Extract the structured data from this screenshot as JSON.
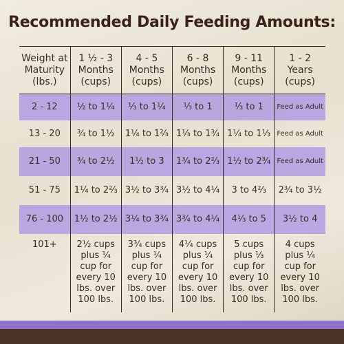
{
  "header": {
    "title": "Recommended Daily Feeding Amounts:"
  },
  "table": {
    "columns": [
      "Weight at Maturity (lbs.)",
      "1 ½ - 3 Months (cups)",
      "4 - 5 Months (cups)",
      "6 - 8 Months (cups)",
      "9 - 11 Months (cups)",
      "1 - 2 Years (cups)"
    ],
    "rows": [
      [
        "2 - 12",
        "½ to 1¼",
        "⅓ to 1¼",
        "⅓ to 1",
        "⅓ to 1",
        "Feed as Adult"
      ],
      [
        "13 - 20",
        "¾ to 1½",
        "1¼ to 1⅔",
        "1⅓ to 1¾",
        "1¼ to 1⅓",
        "Feed as Adult"
      ],
      [
        "21 - 50",
        "¾ to 2½",
        "1½ to 3",
        "1¾ to 2⅔",
        "1½ to 2¾",
        "Feed as Adult"
      ],
      [
        "51 - 75",
        "1¼ to 2⅔",
        "3½ to 3¾",
        "3½ to 4¼",
        "3 to 4⅔",
        "2¾ to 3½"
      ],
      [
        "76 - 100",
        "1½ to 2½",
        "3¼ to 3¾",
        "3¾ to 4¼",
        "4⅓ to 5",
        "3½ to 4"
      ],
      [
        "101+",
        "2½ cups plus ¼ cup for every 10 lbs. over 100 lbs.",
        "3¾ cups plus ¼ cup for every 10 lbs. over 100 lbs.",
        "4¼ cups plus ¼ cup for every 10 lbs. over 100 lbs.",
        "5 cups plus ⅓ cup for every 10 lbs. over 100 lbs.",
        "4 cups plus ¼ cup for every 10 lbs. over 100 lbs."
      ]
    ]
  }
}
